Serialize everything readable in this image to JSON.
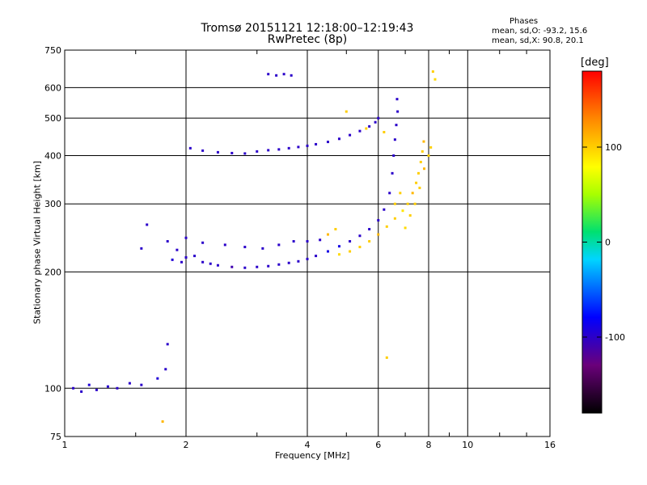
{
  "title_line1": "Tromsø 20151121 12:18:00–12:19:43",
  "title_line2": "RwPretec (8p)",
  "info": {
    "heading": "Phases",
    "line_o": "mean, sd,O: -93.2, 15.6",
    "line_x": "mean, sd,X:  90.8, 20.1"
  },
  "chart_data": {
    "type": "scatter",
    "title": "Tromsø 20151121 12:18:00–12:19:43",
    "subtitle": "RwPretec (8p)",
    "xlabel": "Frequency [MHz]",
    "ylabel": "Stationary phase Virtual Height [km]",
    "x_scale": "log",
    "y_scale": "log",
    "xlim": [
      1,
      16
    ],
    "ylim": [
      75,
      750
    ],
    "x_ticks": [
      1,
      2,
      4,
      6,
      8,
      10,
      16
    ],
    "x_tick_labels": [
      "1",
      "2",
      "4",
      "6",
      "8",
      "10",
      "16"
    ],
    "y_ticks": [
      75,
      100,
      200,
      300,
      400,
      500,
      600,
      750
    ],
    "y_tick_labels": [
      "75",
      "100",
      "200",
      "300",
      "400",
      "500",
      "600",
      "750"
    ],
    "grid": true,
    "colorbar": {
      "label": "[deg]",
      "range": [
        -180,
        180
      ],
      "ticks": [
        100,
        0,
        -100
      ],
      "tick_labels": [
        "100",
        "0",
        "-100"
      ]
    },
    "series": [
      {
        "points": [
          [
            1.05,
            100,
            -100
          ],
          [
            1.1,
            98,
            -100
          ],
          [
            1.15,
            102,
            -95
          ],
          [
            1.2,
            99,
            -100
          ],
          [
            1.28,
            101,
            -98
          ],
          [
            1.35,
            100,
            -100
          ],
          [
            1.45,
            103,
            -100
          ],
          [
            1.55,
            102,
            -100
          ],
          [
            1.7,
            106,
            -95
          ],
          [
            1.78,
            112,
            -100
          ],
          [
            1.8,
            130,
            -100
          ],
          [
            1.55,
            230,
            -100
          ],
          [
            1.6,
            265,
            -100
          ],
          [
            1.8,
            240,
            -100
          ],
          [
            1.85,
            215,
            -95
          ],
          [
            1.9,
            228,
            -100
          ],
          [
            1.95,
            212,
            -100
          ],
          [
            2.0,
            218,
            -100
          ],
          [
            2.1,
            220,
            -100
          ],
          [
            2.2,
            212,
            -100
          ],
          [
            2.3,
            210,
            -100
          ],
          [
            2.4,
            208,
            -100
          ],
          [
            2.6,
            206,
            -110
          ],
          [
            2.8,
            205,
            -100
          ],
          [
            3.0,
            206,
            -100
          ],
          [
            3.2,
            207,
            -100
          ],
          [
            3.4,
            209,
            -100
          ],
          [
            3.6,
            211,
            -100
          ],
          [
            3.8,
            213,
            -100
          ],
          [
            4.0,
            216,
            -100
          ],
          [
            4.2,
            220,
            -100
          ],
          [
            4.5,
            226,
            -90
          ],
          [
            4.8,
            233,
            -90
          ],
          [
            5.1,
            240,
            -100
          ],
          [
            5.4,
            248,
            -100
          ],
          [
            5.7,
            258,
            -100
          ],
          [
            6.0,
            272,
            -100
          ],
          [
            6.2,
            290,
            -100
          ],
          [
            6.4,
            320,
            -100
          ],
          [
            6.5,
            360,
            -100
          ],
          [
            6.55,
            400,
            -100
          ],
          [
            6.6,
            440,
            -100
          ],
          [
            6.65,
            480,
            -100
          ],
          [
            6.7,
            520,
            -100
          ],
          [
            6.68,
            560,
            -100
          ],
          [
            2.0,
            245,
            -100
          ],
          [
            2.2,
            238,
            -100
          ],
          [
            2.5,
            235,
            -100
          ],
          [
            2.8,
            232,
            -100
          ],
          [
            3.1,
            230,
            -100
          ],
          [
            3.4,
            235,
            -100
          ],
          [
            3.7,
            240,
            -100
          ],
          [
            4.0,
            240,
            -100
          ],
          [
            4.3,
            242,
            -100
          ],
          [
            2.05,
            418,
            -100
          ],
          [
            2.2,
            412,
            -100
          ],
          [
            2.4,
            408,
            -100
          ],
          [
            2.6,
            406,
            -100
          ],
          [
            2.8,
            405,
            -100
          ],
          [
            3.0,
            410,
            -100
          ],
          [
            3.2,
            413,
            -100
          ],
          [
            3.4,
            415,
            -100
          ],
          [
            3.6,
            418,
            -100
          ],
          [
            3.8,
            421,
            -100
          ],
          [
            4.0,
            424,
            -100
          ],
          [
            4.2,
            428,
            -100
          ],
          [
            4.5,
            434,
            -100
          ],
          [
            4.8,
            442,
            -100
          ],
          [
            5.1,
            452,
            -100
          ],
          [
            5.4,
            463,
            -100
          ],
          [
            5.7,
            476,
            -100
          ],
          [
            5.9,
            488,
            -100
          ],
          [
            6.0,
            500,
            -100
          ],
          [
            3.2,
            650,
            -100
          ],
          [
            3.35,
            645,
            -100
          ],
          [
            3.5,
            650,
            -100
          ],
          [
            3.65,
            645,
            -100
          ]
        ]
      },
      {
        "points": [
          [
            4.8,
            222,
            95
          ],
          [
            5.1,
            226,
            100
          ],
          [
            5.4,
            232,
            100
          ],
          [
            5.7,
            240,
            100
          ],
          [
            6.0,
            250,
            110
          ],
          [
            6.3,
            262,
            100
          ],
          [
            6.6,
            275,
            100
          ],
          [
            6.9,
            288,
            90
          ],
          [
            7.1,
            300,
            100
          ],
          [
            7.3,
            320,
            110
          ],
          [
            7.45,
            340,
            100
          ],
          [
            7.55,
            360,
            100
          ],
          [
            7.65,
            385,
            100
          ],
          [
            7.72,
            410,
            100
          ],
          [
            7.78,
            435,
            110
          ],
          [
            7.0,
            260,
            95
          ],
          [
            7.2,
            280,
            100
          ],
          [
            7.4,
            300,
            100
          ],
          [
            7.6,
            330,
            100
          ],
          [
            7.8,
            370,
            110
          ],
          [
            8.0,
            400,
            100
          ],
          [
            8.1,
            420,
            100
          ],
          [
            6.6,
            300,
            100
          ],
          [
            6.8,
            320,
            100
          ],
          [
            4.5,
            250,
            110
          ],
          [
            4.7,
            258,
            100
          ],
          [
            5.0,
            520,
            100
          ],
          [
            5.6,
            470,
            100
          ],
          [
            6.2,
            460,
            100
          ],
          [
            8.2,
            660,
            100
          ],
          [
            8.3,
            630,
            95
          ],
          [
            6.3,
            120,
            100
          ],
          [
            1.75,
            82,
            110
          ]
        ]
      }
    ]
  }
}
